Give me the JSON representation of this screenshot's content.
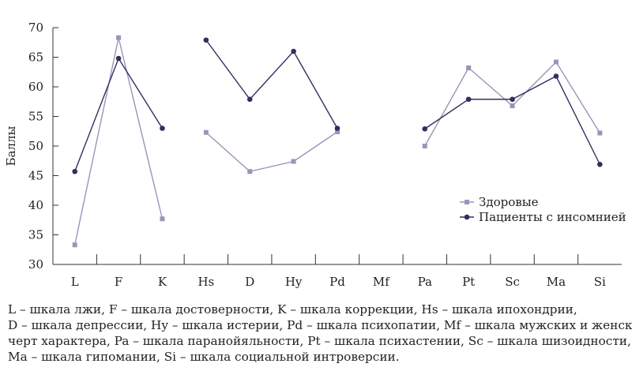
{
  "chart_data": {
    "type": "line",
    "categories": [
      "L",
      "F",
      "K",
      "Hs",
      "D",
      "Hy",
      "Pd",
      "Mf",
      "Pa",
      "Pt",
      "Sc",
      "Ma",
      "Si"
    ],
    "ylabel": "Баллы",
    "xlabel": "",
    "ylim": [
      30,
      70
    ],
    "yticks": [
      30,
      35,
      40,
      45,
      50,
      55,
      60,
      65,
      70
    ],
    "grid": false,
    "legend_position": "right",
    "segments": [
      [
        0,
        1,
        2
      ],
      [
        3,
        4,
        5,
        6
      ],
      [
        8,
        9,
        10,
        11,
        12
      ]
    ],
    "series": [
      {
        "name": "Здоровые",
        "color": "#9b94b8",
        "marker": "square",
        "values": [
          33.3,
          68.3,
          37.7,
          52.3,
          45.7,
          47.4,
          52.4,
          null,
          50.0,
          63.2,
          56.8,
          64.2,
          52.2
        ]
      },
      {
        "name": "Пациенты с инсомнией",
        "color": "#3a2a5e",
        "marker": "circle",
        "values": [
          45.7,
          64.8,
          53.0,
          67.9,
          57.9,
          66.0,
          53.0,
          null,
          52.9,
          57.9,
          57.9,
          61.8,
          46.9
        ]
      }
    ]
  },
  "caption": [
    "L – шкала лжи, F – шкала достоверности, K – шкала коррекции, Hs – шкала ипохондрии,",
    "D – шкала депрессии, Hy – шкала истерии, Pd – шкала психопатии, Mf – шкала мужских и женских",
    "черт характера, Pa – шкала паранойяльности, Pt – шкала психастении, Sc – шкала шизоидности,",
    "Ma – шкала гипомании, Si – шкала социальной интроверсии."
  ]
}
